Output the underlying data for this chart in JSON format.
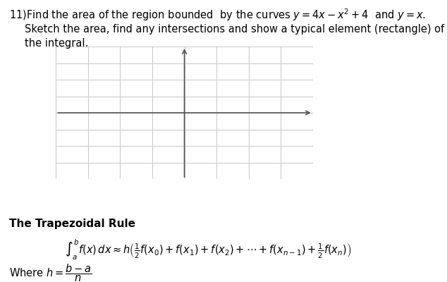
{
  "title_line1": "11)Find the area of the region bounded  by the curves $y = 4x - x^2 + 4$  and $y = x$.",
  "title_line2": "Sketch the area, find any intersections and show a typical element (rectangle) of",
  "title_line3": "the integral.",
  "grid_color": "#cccccc",
  "axis_color": "#555555",
  "background_color": "#ffffff",
  "plot_bg_color": "#ffffff",
  "trap_rule_label": "The Trapezoidal Rule",
  "trap_formula": "$\\int_a^b f(x)\\,dx \\approx h\\left(\\frac{1}{2}f(x_0) + f(x_1) + f(x_2) + \\cdots + f(x_{n-1}) + \\frac{1}{2}f(x_n)\\right)$",
  "where_h_text": "Where $h = $",
  "where_h_frac": "$\\frac{b-a}{n}$",
  "font_size_text": 10.5,
  "font_size_formula": 10.5,
  "font_size_trap": 11
}
